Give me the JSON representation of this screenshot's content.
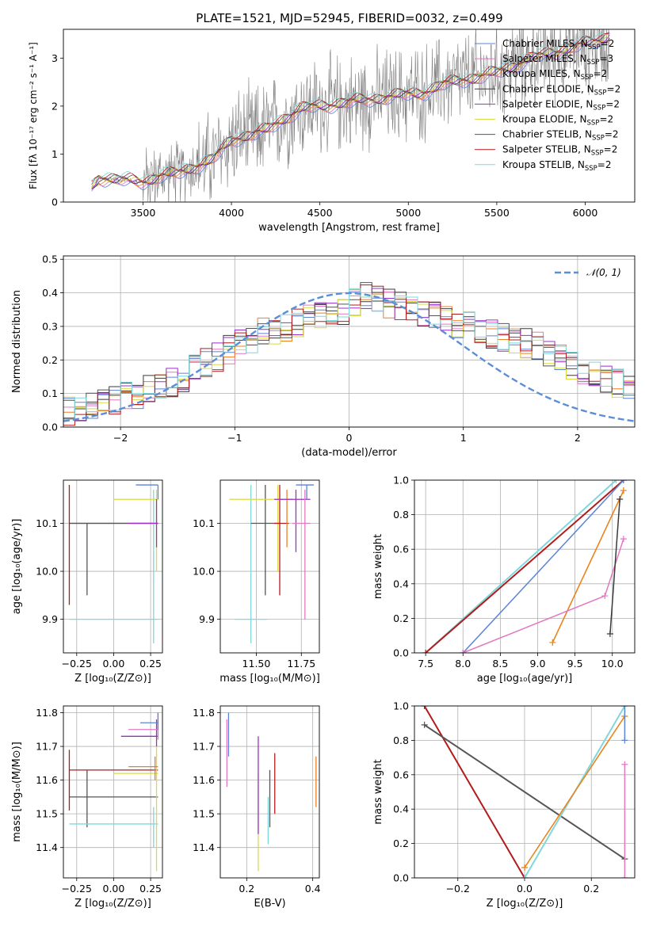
{
  "colors": {
    "Chabrier MILES": "#5b84d6",
    "Salpeter MILES": "#e377c2",
    "Kroupa MILES": "#ee7f22",
    "Chabrier ELODIE": "#3a3a3a",
    "Salpeter ELODIE": "#9b2fc9",
    "Kroupa ELODIE": "#d7dc44",
    "Chabrier STELIB": "#555555",
    "Salpeter STELIB": "#b31b1b",
    "Kroupa STELIB": "#7fd7dc",
    "data": "#808080",
    "normal": "#5b8ed6"
  },
  "chart_data": [
    {
      "id": "spectrum",
      "type": "line",
      "title": "PLATE=1521, MJD=52945, FIBERID=0032, z=0.499",
      "xlabel": "wavelength [Angstrom, rest frame]",
      "ylabel": "Flux [fλ 10⁻¹⁷ erg cm⁻² s⁻¹ A⁻¹]",
      "xlim": [
        3050,
        6280
      ],
      "ylim": [
        0,
        3.6
      ],
      "xticks": [
        "3500",
        "4000",
        "4500",
        "5000",
        "5500",
        "6000"
      ],
      "yticks": [
        "0",
        "1",
        "2",
        "3"
      ],
      "legend_position": "top-right",
      "legend": [
        {
          "label": "Chabrier MILES, N",
          "sub": "SSP",
          "suffix": "=2"
        },
        {
          "label": "Salpeter MILES, N",
          "sub": "SSP",
          "suffix": "=3"
        },
        {
          "label": "Kroupa MILES, N",
          "sub": "SSP",
          "suffix": "=2"
        },
        {
          "label": "Chabrier ELODIE, N",
          "sub": "SSP",
          "suffix": "=2"
        },
        {
          "label": "Salpeter ELODIE, N",
          "sub": "SSP",
          "suffix": "=2"
        },
        {
          "label": "Kroupa ELODIE, N",
          "sub": "SSP",
          "suffix": "=2"
        },
        {
          "label": "Chabrier STELIB, N",
          "sub": "SSP",
          "suffix": "=2"
        },
        {
          "label": "Salpeter STELIB, N",
          "sub": "SSP",
          "suffix": "=2"
        },
        {
          "label": "Kroupa STELIB, N",
          "sub": "SSP",
          "suffix": "=2"
        }
      ],
      "model_continuum": {
        "x": [
          3210,
          3250,
          3300,
          3400,
          3500,
          3600,
          3700,
          3800,
          3900,
          4000,
          4100,
          4200,
          4300,
          4400,
          4500,
          4600,
          4700,
          4800,
          4900,
          5000,
          5100,
          5200,
          5300,
          5400,
          5500,
          5600,
          5700,
          5800,
          5900,
          6000,
          6100,
          6140
        ],
        "y": [
          0.3,
          0.5,
          0.5,
          0.45,
          0.42,
          0.55,
          0.6,
          0.75,
          0.9,
          1.3,
          1.4,
          1.5,
          1.75,
          1.95,
          2.0,
          2.05,
          2.1,
          2.15,
          2.2,
          2.25,
          2.3,
          2.45,
          2.55,
          2.6,
          2.7,
          2.85,
          3.0,
          3.1,
          3.2,
          3.3,
          3.4,
          3.5
        ]
      }
    },
    {
      "id": "residuals",
      "type": "histogram",
      "xlabel": "(data-model)/error",
      "ylabel": "Normed distribution",
      "xlim": [
        -2.5,
        2.5
      ],
      "ylim": [
        0,
        0.51
      ],
      "xticks": [
        "−2",
        "−1",
        "0",
        "1",
        "2"
      ],
      "yticks": [
        "0.0",
        "0.1",
        "0.2",
        "0.3",
        "0.4",
        "0.5"
      ],
      "normal_label": "𝒩(0, 1)",
      "bin_width": 0.1,
      "envelope": [
        0.03,
        0.03,
        0.035,
        0.04,
        0.045,
        0.05,
        0.055,
        0.06,
        0.07,
        0.08,
        0.09,
        0.1,
        0.11,
        0.12,
        0.13,
        0.15,
        0.17,
        0.19,
        0.21,
        0.23,
        0.25,
        0.26,
        0.28,
        0.29,
        0.3,
        0.31,
        0.32,
        0.33,
        0.34,
        0.35,
        0.37,
        0.39,
        0.38,
        0.37,
        0.36,
        0.35,
        0.34,
        0.33,
        0.32,
        0.31,
        0.3,
        0.29,
        0.28,
        0.27,
        0.26,
        0.25,
        0.24,
        0.22,
        0.2,
        0.18,
        0.16,
        0.15,
        0.14,
        0.13,
        0.12,
        0.11,
        0.1,
        0.09,
        0.08,
        0.07
      ]
    },
    {
      "id": "age-vs-Z",
      "type": "errorbar",
      "xlabel": "Z [log₁₀(Z/Z⊙)]",
      "ylabel": "age  [log₁₀(age/yr)]",
      "xlim": [
        -0.34,
        0.33
      ],
      "ylim": [
        9.83,
        10.19
      ],
      "xticks": [
        "−0.25",
        "0.00",
        "0.25"
      ],
      "yticks": [
        "9.9",
        "10.0",
        "10.1"
      ],
      "points": [
        {
          "model": "Salpeter STELIB",
          "x": -0.3,
          "y": 10.1,
          "xlo": -0.3,
          "xhi": 0.3,
          "ylo": 9.93,
          "yhi": 10.18
        },
        {
          "model": "Chabrier STELIB",
          "x": -0.18,
          "y": 10.1,
          "xlo": -0.3,
          "xhi": 0.3,
          "ylo": 9.95,
          "yhi": 10.1
        },
        {
          "model": "Kroupa STELIB",
          "x": 0.27,
          "y": 9.9,
          "xlo": -0.3,
          "xhi": 0.3,
          "ylo": 9.85,
          "yhi": 10.17
        },
        {
          "model": "Kroupa ELODIE",
          "x": 0.29,
          "y": 10.15,
          "xlo": 0.0,
          "xhi": 0.3,
          "ylo": 10.0,
          "yhi": 10.17
        },
        {
          "model": "Salpeter ELODIE",
          "x": 0.29,
          "y": 10.1,
          "xlo": 0.1,
          "xhi": 0.3,
          "ylo": 10.05,
          "yhi": 10.15
        },
        {
          "model": "Chabrier MILES",
          "x": 0.3,
          "y": 10.18,
          "xlo": 0.15,
          "xhi": 0.3,
          "ylo": 10.15,
          "yhi": 10.18
        }
      ]
    },
    {
      "id": "age-vs-mass",
      "type": "errorbar",
      "xlabel": "mass [log₁₀(M/M⊙)]",
      "ylabel": "",
      "xlim": [
        11.3,
        11.85
      ],
      "ylim": [
        9.83,
        10.19
      ],
      "xticks": [
        "11.50",
        "11.75"
      ],
      "yticks": [
        "9.9",
        "10.0",
        "10.1"
      ],
      "points": [
        {
          "model": "Kroupa STELIB",
          "x": 11.47,
          "y": 9.9,
          "xlo": 11.38,
          "xhi": 11.56,
          "ylo": 9.85,
          "yhi": 10.18
        },
        {
          "model": "Chabrier STELIB",
          "x": 11.55,
          "y": 10.1,
          "xlo": 11.47,
          "xhi": 11.63,
          "ylo": 9.95,
          "yhi": 10.18
        },
        {
          "model": "Kroupa ELODIE",
          "x": 11.62,
          "y": 10.15,
          "xlo": 11.35,
          "xhi": 11.64,
          "ylo": 10.0,
          "yhi": 10.18
        },
        {
          "model": "Salpeter STELIB",
          "x": 11.63,
          "y": 10.1,
          "xlo": 11.6,
          "xhi": 11.68,
          "ylo": 9.95,
          "yhi": 10.18
        },
        {
          "model": "Kroupa MILES",
          "x": 11.67,
          "y": 10.15,
          "xlo": 11.62,
          "xhi": 11.7,
          "ylo": 10.05,
          "yhi": 10.17
        },
        {
          "model": "Salpeter ELODIE",
          "x": 11.72,
          "y": 10.15,
          "xlo": 11.6,
          "xhi": 11.8,
          "ylo": 10.04,
          "yhi": 10.17
        },
        {
          "model": "Salpeter MILES",
          "x": 11.77,
          "y": 10.1,
          "xlo": 11.7,
          "xhi": 11.8,
          "ylo": 9.9,
          "yhi": 10.17
        },
        {
          "model": "Chabrier MILES",
          "x": 11.78,
          "y": 10.18,
          "xlo": 11.72,
          "xhi": 11.82,
          "ylo": 10.15,
          "yhi": 10.18
        }
      ]
    },
    {
      "id": "massweight-vs-age",
      "type": "line",
      "xlabel": "age  [log₁₀(age/yr)]",
      "ylabel": "mass weight",
      "xlim": [
        7.35,
        10.3
      ],
      "ylim": [
        0,
        1
      ],
      "xticks": [
        "7.5",
        "8.0",
        "8.5",
        "9.0",
        "9.5",
        "10.0"
      ],
      "yticks": [
        "0.0",
        "0.2",
        "0.4",
        "0.6",
        "0.8",
        "1.0"
      ],
      "series": [
        {
          "model": "Kroupa STELIB",
          "x": [
            7.5,
            10.05
          ],
          "y": [
            0.0,
            1.0
          ]
        },
        {
          "model": "Salpeter STELIB",
          "x": [
            7.5,
            10.15
          ],
          "y": [
            0.0,
            1.0
          ]
        },
        {
          "model": "Chabrier MILES",
          "x": [
            8.0,
            10.15
          ],
          "y": [
            0.0,
            1.0
          ]
        },
        {
          "model": "Kroupa ELODIE",
          "x": [
            9.2,
            10.15
          ],
          "y": [
            0.06,
            0.94
          ]
        },
        {
          "model": "Kroupa MILES",
          "x": [
            9.2,
            10.15
          ],
          "y": [
            0.06,
            0.94
          ]
        },
        {
          "model": "Salpeter MILES",
          "x": [
            8.0,
            9.9,
            10.15
          ],
          "y": [
            0.0,
            0.33,
            0.66
          ]
        },
        {
          "model": "Chabrier ELODIE",
          "x": [
            9.97,
            10.1
          ],
          "y": [
            0.11,
            0.89
          ]
        }
      ]
    },
    {
      "id": "mass-vs-Z",
      "type": "errorbar",
      "xlabel": "Z [log₁₀(Z/Z⊙)]",
      "ylabel": "mass [log₁₀(M/M⊙)]",
      "xlim": [
        -0.34,
        0.33
      ],
      "ylim": [
        11.31,
        11.82
      ],
      "xticks": [
        "−0.25",
        "0.00",
        "0.25"
      ],
      "yticks": [
        "11.4",
        "11.5",
        "11.6",
        "11.7",
        "11.8"
      ],
      "points": [
        {
          "model": "Salpeter STELIB",
          "x": -0.3,
          "y": 11.63,
          "xlo": -0.3,
          "xhi": 0.3,
          "ylo": 11.51,
          "yhi": 11.69
        },
        {
          "model": "Chabrier STELIB",
          "x": -0.18,
          "y": 11.55,
          "xlo": -0.3,
          "xhi": 0.3,
          "ylo": 11.46,
          "yhi": 11.63
        },
        {
          "model": "Kroupa STELIB",
          "x": 0.27,
          "y": 11.47,
          "xlo": -0.3,
          "xhi": 0.3,
          "ylo": 11.4,
          "yhi": 11.52
        },
        {
          "model": "Kroupa ELODIE",
          "x": 0.29,
          "y": 11.62,
          "xlo": 0.0,
          "xhi": 0.3,
          "ylo": 11.33,
          "yhi": 11.7
        },
        {
          "model": "Kroupa MILES",
          "x": 0.28,
          "y": 11.64,
          "xlo": 0.1,
          "xhi": 0.3,
          "ylo": 11.6,
          "yhi": 11.67
        },
        {
          "model": "Salpeter ELODIE",
          "x": 0.29,
          "y": 11.73,
          "xlo": 0.05,
          "xhi": 0.3,
          "ylo": 11.7,
          "yhi": 11.78
        },
        {
          "model": "Salpeter MILES",
          "x": 0.3,
          "y": 11.75,
          "xlo": 0.1,
          "xhi": 0.3,
          "ylo": 11.72,
          "yhi": 11.8
        },
        {
          "model": "Chabrier MILES",
          "x": 0.3,
          "y": 11.77,
          "xlo": 0.18,
          "xhi": 0.3,
          "ylo": 11.75,
          "yhi": 11.8
        }
      ]
    },
    {
      "id": "mass-vs-EBV",
      "type": "errorbar",
      "xlabel": "E(B-V)",
      "ylabel": "",
      "xlim": [
        0.12,
        0.42
      ],
      "ylim": [
        11.31,
        11.82
      ],
      "xticks": [
        "0.2",
        "0.4"
      ],
      "yticks": [
        "11.4",
        "11.5",
        "11.6",
        "11.7",
        "11.8"
      ],
      "points": [
        {
          "model": "Salpeter MILES",
          "x": 0.14,
          "y": 11.68,
          "ylo": 11.58,
          "yhi": 11.78
        },
        {
          "model": "Chabrier MILES",
          "x": 0.145,
          "y": 11.74,
          "ylo": 11.67,
          "yhi": 11.8
        },
        {
          "model": "Kroupa ELODIE",
          "x": 0.235,
          "y": 11.4,
          "ylo": 11.33,
          "yhi": 11.62
        },
        {
          "model": "Salpeter ELODIE",
          "x": 0.235,
          "y": 11.6,
          "ylo": 11.44,
          "yhi": 11.73
        },
        {
          "model": "Kroupa STELIB",
          "x": 0.265,
          "y": 11.47,
          "ylo": 11.41,
          "yhi": 11.55
        },
        {
          "model": "Chabrier STELIB",
          "x": 0.27,
          "y": 11.55,
          "ylo": 11.46,
          "yhi": 11.63
        },
        {
          "model": "Salpeter STELIB",
          "x": 0.285,
          "y": 11.6,
          "ylo": 11.5,
          "yhi": 11.68
        },
        {
          "model": "Kroupa MILES",
          "x": 0.41,
          "y": 11.6,
          "ylo": 11.52,
          "yhi": 11.67
        }
      ]
    },
    {
      "id": "massweight-vs-Z",
      "type": "line",
      "xlabel": "Z [log₁₀(Z/Z⊙)]",
      "ylabel": "mass weight",
      "xlim": [
        -0.33,
        0.33
      ],
      "ylim": [
        0,
        1
      ],
      "xticks": [
        "−0.2",
        "0.0",
        "0.2"
      ],
      "yticks": [
        "0.0",
        "0.2",
        "0.4",
        "0.6",
        "0.8",
        "1.0"
      ],
      "series": [
        {
          "model": "Salpeter STELIB",
          "x": [
            -0.3,
            0.0
          ],
          "y": [
            1.0,
            0.0
          ]
        },
        {
          "model": "Chabrier STELIB",
          "x": [
            -0.3,
            0.3
          ],
          "y": [
            0.89,
            0.11
          ]
        },
        {
          "model": "Kroupa STELIB",
          "x": [
            0.0,
            0.3
          ],
          "y": [
            0.0,
            1.0
          ]
        },
        {
          "model": "Kroupa ELODIE",
          "x": [
            0.0,
            0.3
          ],
          "y": [
            0.06,
            0.94
          ]
        },
        {
          "model": "Kroupa MILES",
          "x": [
            0.0,
            0.3
          ],
          "y": [
            0.06,
            0.94
          ]
        },
        {
          "model": "Chabrier MILES",
          "x": [
            0.3,
            0.3
          ],
          "y": [
            0.8,
            1.0
          ]
        },
        {
          "model": "Salpeter MILES",
          "x": [
            0.3,
            0.3
          ],
          "y": [
            0.0,
            0.66
          ]
        }
      ]
    }
  ]
}
